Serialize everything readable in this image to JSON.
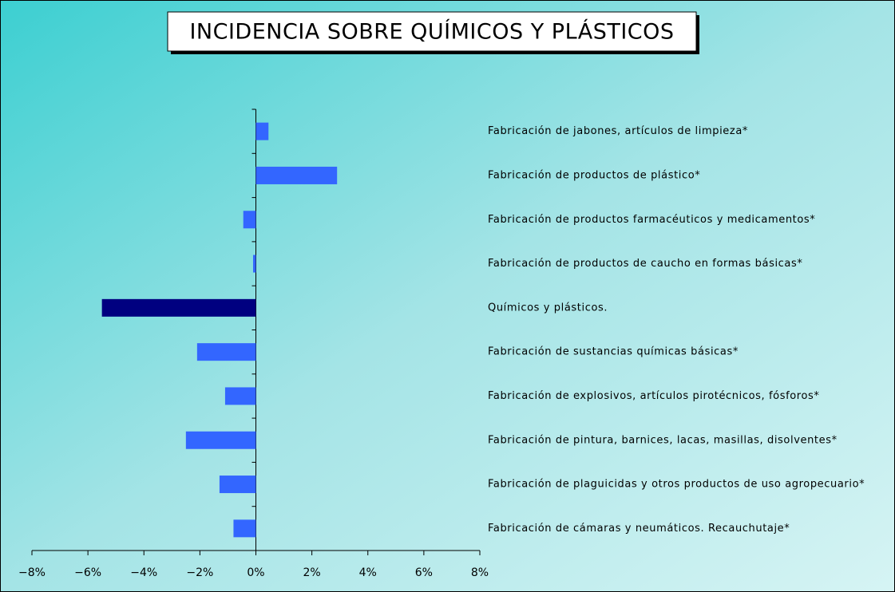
{
  "chart_data": {
    "type": "hbar",
    "title": "INCIDENCIA SOBRE QUÍMICOS Y PLÁSTICOS",
    "categories": [
      "Fabricación de jabones, artículos de limpieza*",
      "Fabricación de productos de plástico*",
      "Fabricación de productos farmacéuticos y medicamentos*",
      "Fabricación de productos de caucho en formas básicas*",
      "Químicos y plásticos.",
      "Fabricación de sustancias químicas básicas*",
      "Fabricación de explosivos, artículos pirotécnicos, fósforos*",
      "Fabricación de pintura, barnices, lacas, masillas, disolventes*",
      "Fabricación de plaguicidas y otros productos de uso agropecuario*",
      "Fabricación de cámaras y neumáticos. Recauchutaje*"
    ],
    "values": [
      0.45,
      2.9,
      -0.45,
      -0.1,
      -5.5,
      -2.1,
      -1.1,
      -2.5,
      -1.3,
      -0.8
    ],
    "colors": [
      "#3366ff",
      "#3366ff",
      "#3366ff",
      "#3366ff",
      "#000080",
      "#3366ff",
      "#3366ff",
      "#3366ff",
      "#3366ff",
      "#3366ff"
    ],
    "xlim": [
      -8,
      8
    ],
    "xticks": [
      {
        "value": -8,
        "label": "−8%"
      },
      {
        "value": -6,
        "label": "−6%"
      },
      {
        "value": -4,
        "label": "−4%"
      },
      {
        "value": -2,
        "label": "−2%"
      },
      {
        "value": 0,
        "label": "0%"
      },
      {
        "value": 2,
        "label": "2%"
      },
      {
        "value": 4,
        "label": "4%"
      },
      {
        "value": 6,
        "label": "6%"
      },
      {
        "value": 8,
        "label": "8%"
      }
    ]
  }
}
